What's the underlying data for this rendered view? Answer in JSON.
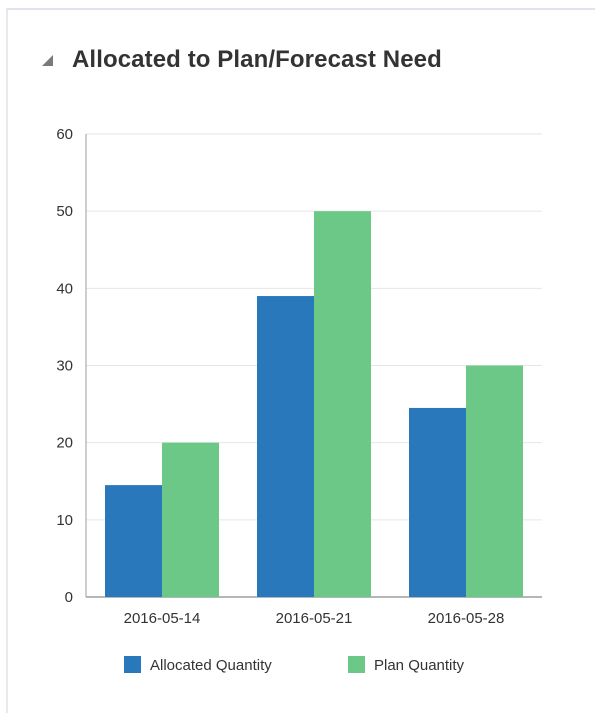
{
  "panel": {
    "title": "Allocated to Plan/Forecast Need",
    "collapse_icon": "collapse-triangle-icon"
  },
  "colors": {
    "allocated": "#2a78bc",
    "plan": "#6cc886",
    "grid": "#e6e6e6",
    "axis": "#9e9e9e",
    "text": "#333333"
  },
  "chart_data": {
    "type": "bar",
    "title": "",
    "xlabel": "",
    "ylabel": "",
    "categories": [
      "2016-05-14",
      "2016-05-21",
      "2016-05-28"
    ],
    "series": [
      {
        "name": "Allocated Quantity",
        "values": [
          14.5,
          39,
          24.5
        ]
      },
      {
        "name": "Plan Quantity",
        "values": [
          20,
          50,
          30
        ]
      }
    ],
    "ylim": [
      0,
      60
    ],
    "yticks": [
      0,
      10,
      20,
      30,
      40,
      50,
      60
    ],
    "grid": true,
    "legend_position": "bottom"
  }
}
